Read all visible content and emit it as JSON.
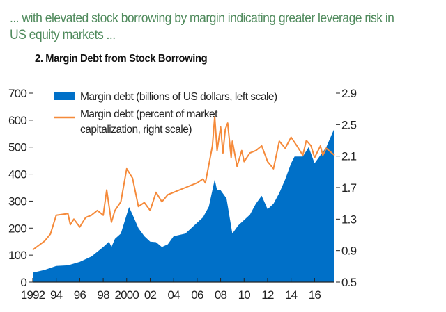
{
  "headline": "... with elevated stock borrowing by margin indicating greater leverage risk in US equity markets ...",
  "chart_data": {
    "type": "area+line",
    "title": "2. Margin Debt from Stock Borrowing",
    "legend_placement": "top-left",
    "grid": false,
    "x_ticks": [
      "1992",
      "94",
      "96",
      "98",
      "2000",
      "02",
      "04",
      "06",
      "08",
      "10",
      "12",
      "14",
      "16"
    ],
    "x_tick_years": [
      1992,
      1994,
      1996,
      1998,
      2000,
      2002,
      2004,
      2006,
      2008,
      2010,
      2012,
      2014,
      2016
    ],
    "xlim": [
      1992,
      2017.7
    ],
    "left_axis": {
      "ylim": [
        0,
        700
      ],
      "ticks": [
        "0",
        "100",
        "200",
        "300",
        "400",
        "500",
        "600",
        "700"
      ]
    },
    "right_axis": {
      "ylim": [
        0.5,
        2.9
      ],
      "ticks": [
        "0.5",
        "0.9",
        "1.3",
        "1.7",
        "2.1",
        "2.5",
        "2.9"
      ]
    },
    "series": [
      {
        "name": "Margin debt (billions of US dollars, left scale)",
        "type": "area",
        "axis": "left",
        "color": "#0070c8",
        "x": [
          1992,
          1993,
          1994,
          1995,
          1996,
          1997,
          1998,
          1998.5,
          1998.7,
          1999,
          1999.5,
          2000,
          2000.2,
          2000.5,
          2001,
          2001.5,
          2002,
          2002.5,
          2003,
          2003.5,
          2004,
          2005,
          2005.5,
          2006,
          2006.5,
          2007,
          2007.5,
          2007.7,
          2008,
          2008.5,
          2009,
          2009.5,
          2010,
          2010.5,
          2011,
          2011.5,
          2012,
          2012.5,
          2013,
          2013.5,
          2014,
          2014.3,
          2015,
          2015.5,
          2016,
          2016.5,
          2017,
          2017.5,
          2017.7
        ],
        "values": [
          35,
          45,
          60,
          62,
          75,
          95,
          130,
          150,
          130,
          160,
          180,
          250,
          278,
          250,
          200,
          170,
          150,
          148,
          130,
          140,
          170,
          180,
          200,
          220,
          240,
          280,
          380,
          340,
          340,
          310,
          180,
          210,
          230,
          250,
          290,
          320,
          270,
          290,
          330,
          380,
          440,
          465,
          465,
          500,
          440,
          470,
          500,
          550,
          570
        ]
      },
      {
        "name": "Margin debt (percent of market capitalization, right scale)",
        "type": "line",
        "axis": "right",
        "color": "#f58a3a",
        "x": [
          1992,
          1993,
          1993.5,
          1994,
          1995,
          1995.2,
          1995.5,
          1996,
          1996.5,
          1997,
          1997.5,
          1998,
          1998.3,
          1998.7,
          1999,
          1999.5,
          2000,
          2000.5,
          2001,
          2001.5,
          2002,
          2002.5,
          2003,
          2003.5,
          2004,
          2005,
          2005.5,
          2006,
          2006.5,
          2006.7,
          2007,
          2007.3,
          2007.5,
          2007.7,
          2008,
          2008.2,
          2008.4,
          2008.6,
          2008.9,
          2009,
          2009.4,
          2009.8,
          2010,
          2010.5,
          2011,
          2011.5,
          2012,
          2012.5,
          2013,
          2013.5,
          2014,
          2014.5,
          2015,
          2015.3,
          2015.7,
          2016,
          2016.5,
          2016.7,
          2017,
          2017.7
        ],
        "values": [
          0.91,
          1.02,
          1.11,
          1.35,
          1.37,
          1.23,
          1.3,
          1.2,
          1.32,
          1.35,
          1.41,
          1.35,
          1.67,
          1.26,
          1.41,
          1.52,
          1.94,
          1.82,
          1.46,
          1.51,
          1.41,
          1.64,
          1.52,
          1.61,
          1.64,
          1.7,
          1.73,
          1.76,
          1.81,
          1.76,
          1.99,
          2.23,
          2.6,
          2.17,
          2.47,
          2.14,
          2.44,
          2.52,
          2.08,
          2.29,
          1.97,
          2.17,
          2.03,
          2.14,
          2.17,
          2.23,
          2.03,
          1.94,
          2.29,
          2.2,
          2.34,
          2.23,
          2.11,
          2.3,
          2.23,
          2.08,
          2.23,
          2.11,
          2.2,
          2.11
        ]
      }
    ]
  }
}
